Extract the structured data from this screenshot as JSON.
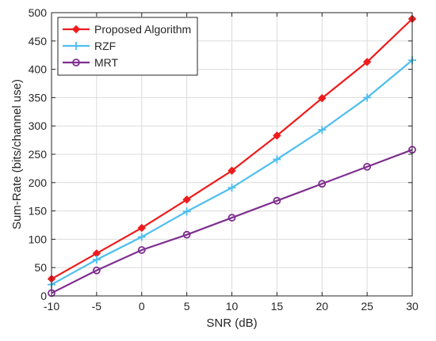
{
  "chart_data": {
    "type": "line",
    "title": "",
    "xlabel": "SNR (dB)",
    "ylabel": "Sum-Rate (bits/channel use)",
    "x": [
      -10,
      -5,
      0,
      5,
      10,
      15,
      20,
      25,
      30
    ],
    "xlim": [
      -10,
      30
    ],
    "ylim": [
      0,
      500
    ],
    "xticks": [
      -10,
      -5,
      0,
      5,
      10,
      15,
      20,
      25,
      30
    ],
    "yticks": [
      0,
      50,
      100,
      150,
      200,
      250,
      300,
      350,
      400,
      450,
      500
    ],
    "grid": true,
    "legend_position": "top-left",
    "series": [
      {
        "name": "Proposed Algorithm",
        "color": "#ee1c1c",
        "marker": "diamond",
        "values": [
          30,
          75,
          120,
          170,
          221,
          283,
          349,
          413,
          489
        ]
      },
      {
        "name": "RZF",
        "color": "#4dbeee",
        "marker": "plus",
        "values": [
          20,
          64,
          104,
          149,
          191,
          241,
          293,
          350,
          416
        ]
      },
      {
        "name": "MRT",
        "color": "#7e2f8e",
        "marker": "circle",
        "values": [
          5,
          45,
          81,
          108,
          138,
          168,
          198,
          228,
          258
        ]
      }
    ]
  }
}
